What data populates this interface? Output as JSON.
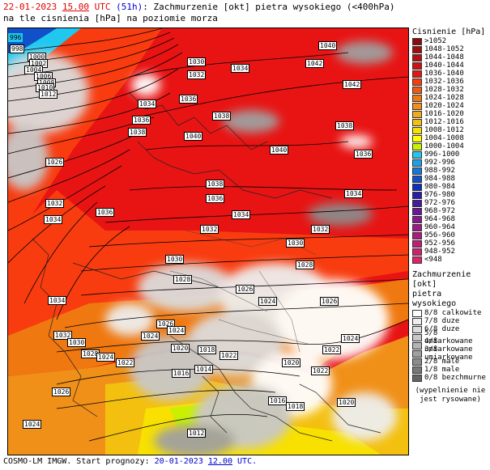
{
  "header": {
    "date": "22-01-2023",
    "time": "15.00",
    "utc": "UTC",
    "lead": "(51h)",
    "title_rest": ": Zachmurzenie [okt] pietra wysokiego (<400hPa)",
    "line2": "na tle cisnienia [hPa] na poziomie morza"
  },
  "pressure_legend": {
    "title": "Cisnienie [hPa]",
    "items": [
      {
        "label": ">1052",
        "color": "#8b0a0a"
      },
      {
        "label": "1048-1052",
        "color": "#a00c0c"
      },
      {
        "label": "1044-1048",
        "color": "#b80d0d"
      },
      {
        "label": "1040-1044",
        "color": "#d01010"
      },
      {
        "label": "1036-1040",
        "color": "#e81414"
      },
      {
        "label": "1032-1036",
        "color": "#f83c10"
      },
      {
        "label": "1028-1032",
        "color": "#f05a10"
      },
      {
        "label": "1024-1028",
        "color": "#f07810"
      },
      {
        "label": "1020-1024",
        "color": "#f09018"
      },
      {
        "label": "1016-1020",
        "color": "#f4a820"
      },
      {
        "label": "1012-1016",
        "color": "#f4c010"
      },
      {
        "label": "1008-1012",
        "color": "#f8e000"
      },
      {
        "label": "1004-1008",
        "color": "#ffff00"
      },
      {
        "label": "1000-1004",
        "color": "#c8f000"
      },
      {
        "label": "996-1000",
        "color": "#20c8f0"
      },
      {
        "label": "992-996",
        "color": "#1aa0e8"
      },
      {
        "label": "988-992",
        "color": "#1478d8"
      },
      {
        "label": "984-988",
        "color": "#1050c8"
      },
      {
        "label": "980-984",
        "color": "#0c30b8"
      },
      {
        "label": "976-980",
        "color": "#2820a8"
      },
      {
        "label": "972-976",
        "color": "#4818a0"
      },
      {
        "label": "968-972",
        "color": "#6a1898"
      },
      {
        "label": "964-968",
        "color": "#881890"
      },
      {
        "label": "960-964",
        "color": "#a01888"
      },
      {
        "label": "956-960",
        "color": "#b01a80"
      },
      {
        "label": "952-956",
        "color": "#c01c78"
      },
      {
        "label": "948-952",
        "color": "#d01e70"
      },
      {
        "label": "<948",
        "color": "#e02068"
      }
    ]
  },
  "cloud_legend": {
    "title1": "Zachmurzenie [okt]",
    "title2": "pietra wysokiego",
    "items": [
      {
        "label": "8/8 calkowite",
        "color": "#ffffff"
      },
      {
        "label": "7/8 duze",
        "color": "#eeeeee"
      },
      {
        "label": "6/8 duze",
        "color": "#dcdcdc"
      },
      {
        "label": "5/8 umiarkowane",
        "color": "#c8c8c8"
      },
      {
        "label": "4/8 umiarkowane",
        "color": "#b4b4b4"
      },
      {
        "label": "3/8 umiarkowane",
        "color": "#a0a0a0"
      },
      {
        "label": "2/8 male",
        "color": "#8c8c8c"
      },
      {
        "label": "1/8 male",
        "color": "#787878"
      },
      {
        "label": "0/8 bezchmurne",
        "color": "#646464"
      }
    ],
    "note1": "(wypelnienie nie",
    "note2": "jest rysowane)"
  },
  "isobar_labels": [
    "996",
    "998",
    "1000",
    "1002",
    "1004",
    "1006",
    "1008",
    "1010",
    "1012",
    "1030",
    "1032",
    "1034",
    "1036",
    "1038",
    "1040",
    "1042",
    "1026",
    "1028",
    "1024",
    "1022",
    "1020",
    "1018",
    "1016",
    "1014",
    "1012"
  ],
  "footer": {
    "prefix": "COSMO-LM IMGW. Start prognozy: ",
    "date": "20-01-2023",
    "time": "12.00",
    "utc": "UTC."
  }
}
